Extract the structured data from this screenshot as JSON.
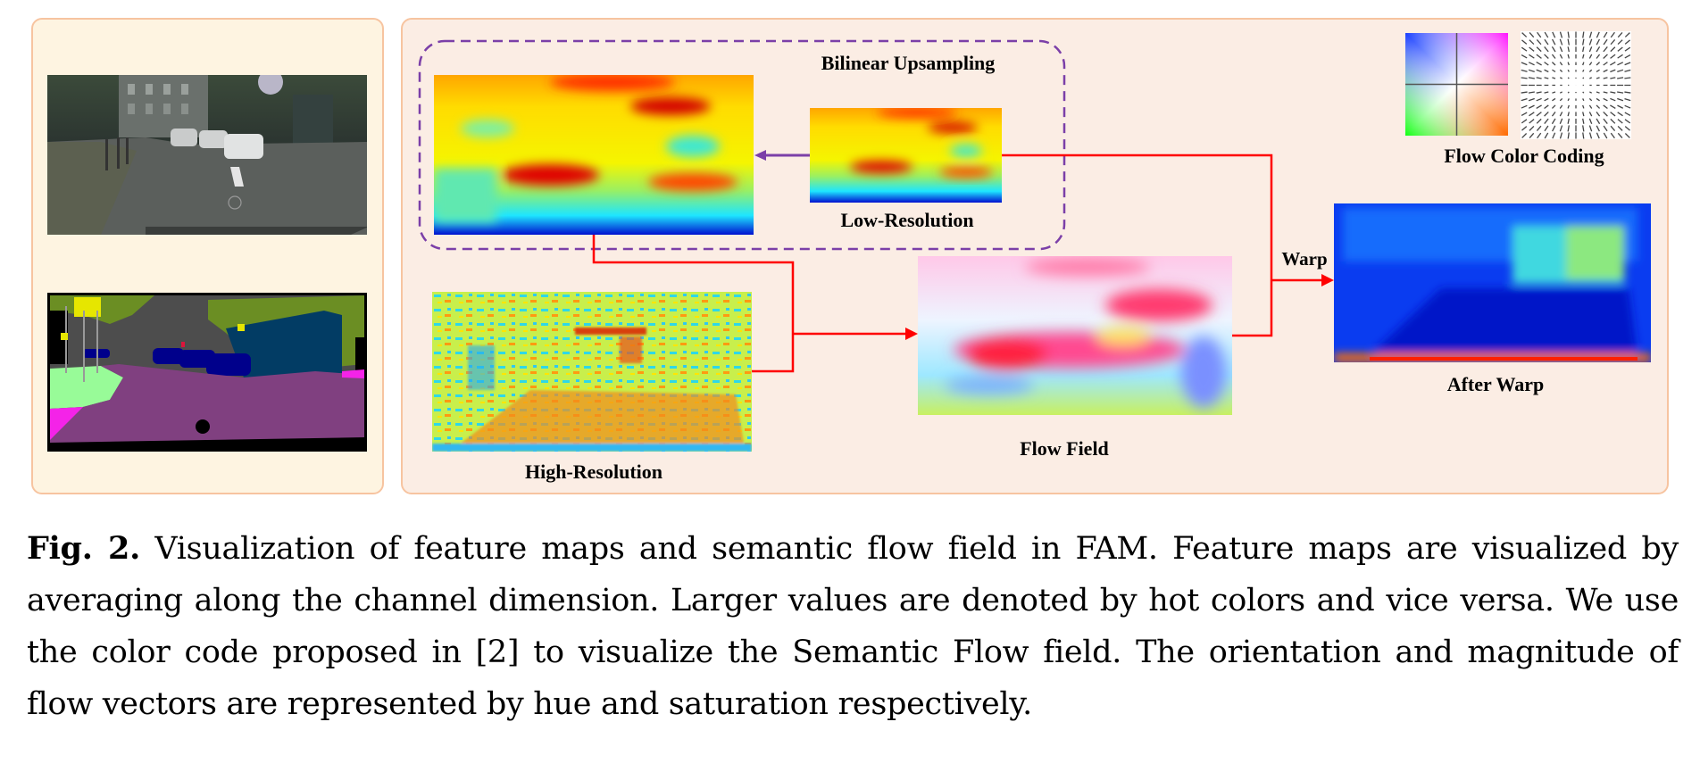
{
  "figure": {
    "left_panel": {
      "input_image": "street-scene-photo",
      "segmentation_image": "semantic-segmentation-map"
    },
    "bilinear_box": {
      "title": "Bilinear Upsampling",
      "low_res_label": "Low-Resolution"
    },
    "high_res_label": "High-Resolution",
    "flow_field_label": "Flow Field",
    "warp_label": "Warp",
    "after_warp_label": "After Warp",
    "flow_color_coding_label": "Flow Color Coding",
    "colors": {
      "left_panel_bg": "#fef4e1",
      "right_panel_bg": "#fbede4",
      "panel_border": "#f7c4a0",
      "arrow_red": "#ff0000",
      "dashed_purple": "#7b3fa8"
    }
  },
  "caption": {
    "label": "Fig. 2.",
    "text": "Visualization of feature maps and semantic flow field in FAM. Feature maps are visualized by averaging along the channel dimension. Larger values are denoted by hot colors and vice versa. We use the color code proposed in [2] to visualize the Semantic Flow field. The orientation and magnitude of flow vectors are represented by hue and saturation respectively."
  }
}
